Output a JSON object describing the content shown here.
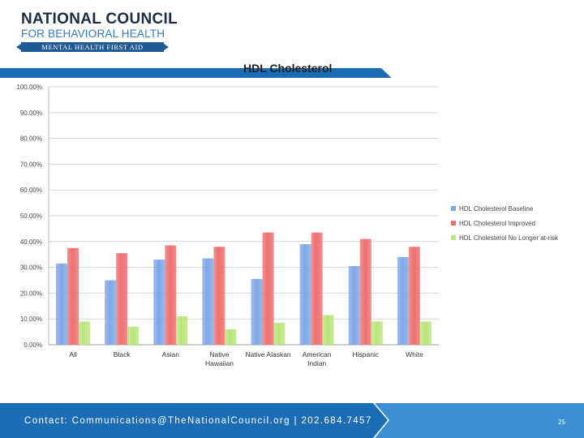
{
  "logo": {
    "line1": "NATIONAL COUNCIL",
    "line2": "FOR BEHAVIORAL HEALTH",
    "ribbon": "MENTAL HEALTH FIRST AID"
  },
  "footer": {
    "contact": "Contact: Communications@TheNationalCouncil.org  |  202.684.7457",
    "page": "25"
  },
  "colors": {
    "band": "#1a6db5",
    "band_light": "#4a9ad8",
    "series": [
      "#7fa7e8",
      "#ee6f6f",
      "#b8e67a"
    ]
  },
  "chart_data": {
    "type": "bar",
    "title": "HDL Cholesterol",
    "categories": [
      "All",
      "Black",
      "Asian",
      "Native Hawaiian",
      "Native Alaskan",
      "American Indian",
      "Hispanic",
      "White"
    ],
    "category_lines": [
      [
        "All"
      ],
      [
        "Black"
      ],
      [
        "Asian"
      ],
      [
        "Native",
        "Hawaiian"
      ],
      [
        "Native Alaskan"
      ],
      [
        "American",
        "Indian"
      ],
      [
        "Hispanic"
      ],
      [
        "White"
      ]
    ],
    "series": [
      {
        "name": "HDL Cholesterol Baseline",
        "values": [
          31.5,
          25.0,
          33.0,
          33.5,
          25.5,
          39.0,
          30.5,
          34.0
        ]
      },
      {
        "name": "HDL Cholesterol Improved",
        "values": [
          37.5,
          35.5,
          38.5,
          38.0,
          43.5,
          43.5,
          41.0,
          38.0
        ]
      },
      {
        "name": "HDL Cholesterol No Longer at-risk",
        "values": [
          9.0,
          7.0,
          11.0,
          6.0,
          8.5,
          11.5,
          9.0,
          9.0
        ]
      }
    ],
    "ylim": [
      0,
      100
    ],
    "yticks": [
      "0.00%",
      "10.00%",
      "20.00%",
      "30.00%",
      "40.00%",
      "50.00%",
      "60.00%",
      "70.00%",
      "80.00%",
      "90.00%",
      "100.00%"
    ],
    "xlabel": "",
    "ylabel": "",
    "grid": true,
    "legend": "right"
  }
}
